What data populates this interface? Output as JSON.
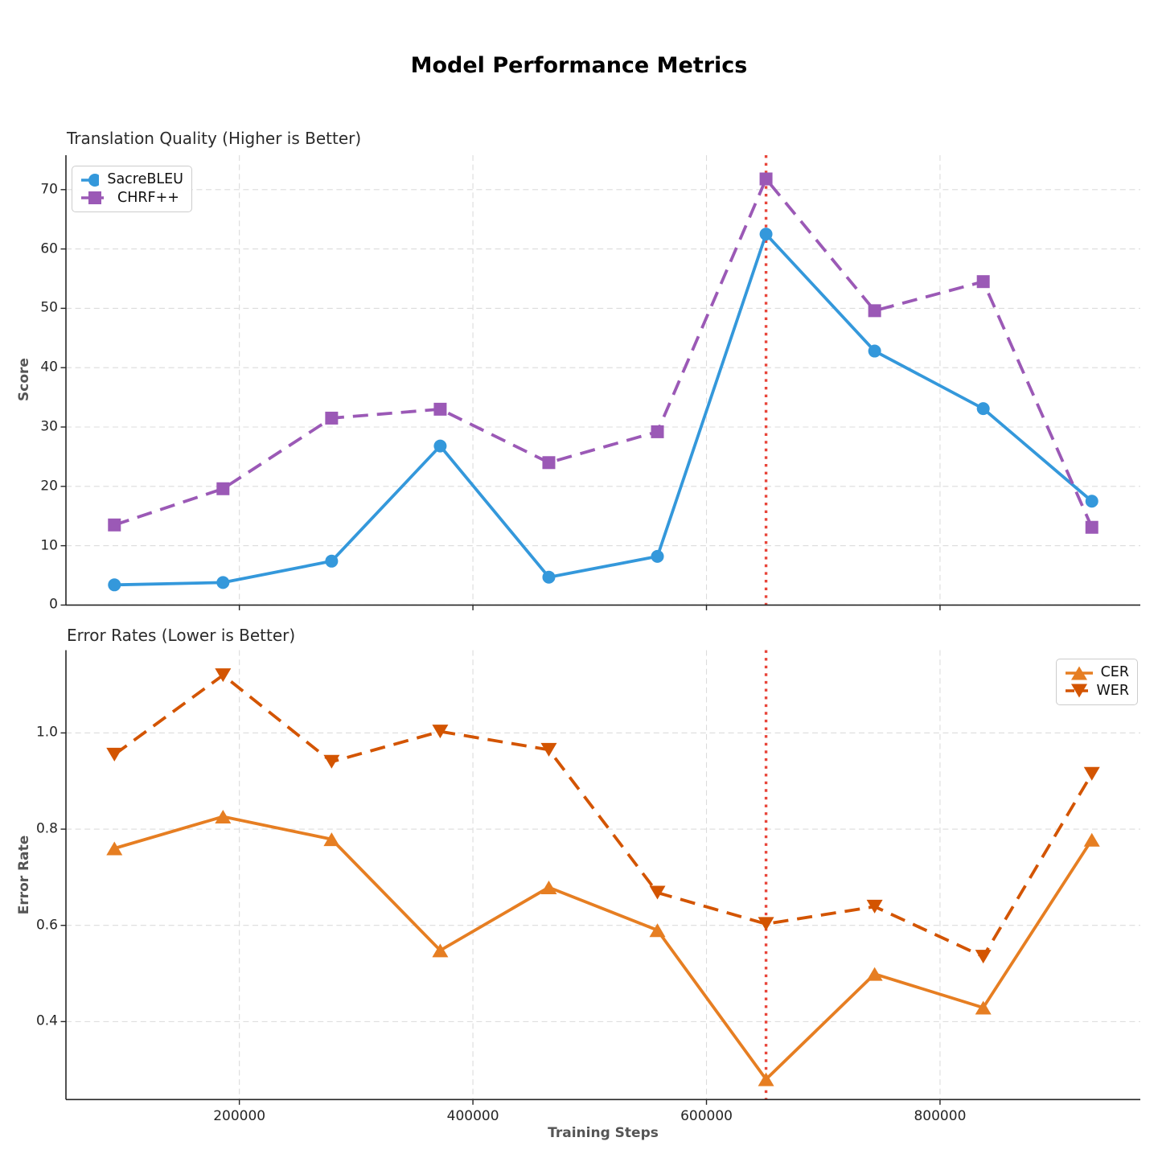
{
  "page_title": "Model Performance Metrics",
  "x_axis": {
    "label": "Training Steps",
    "tick_values": [
      200000,
      400000,
      600000,
      800000
    ],
    "tick_labels": [
      "200000",
      "400000",
      "600000",
      "800000"
    ],
    "xlim": [
      51500,
      971500
    ]
  },
  "vline": {
    "x": 651000,
    "color": "#e8453a",
    "style": "dotted"
  },
  "colors": {
    "sacrebleu": "#3498db",
    "chrf": "#9b59b6",
    "cer": "#e67e22",
    "wer": "#d35400",
    "grid": "#dcdcdc",
    "spine": "#262626"
  },
  "chart_data": [
    {
      "type": "line",
      "title": "Translation Quality (Higher is Better)",
      "ylabel": "Score",
      "ylim": [
        0,
        75.8
      ],
      "ytick_values": [
        0,
        10,
        20,
        30,
        40,
        50,
        60,
        70
      ],
      "ytick_labels": [
        "0",
        "10",
        "20",
        "30",
        "40",
        "50",
        "60",
        "70"
      ],
      "grid": true,
      "legend_position": "upper-left",
      "x": [
        93000,
        186000,
        279000,
        372000,
        465000,
        558000,
        651000,
        744000,
        837000,
        930000
      ],
      "series": [
        {
          "name": "SacreBLEU",
          "color": "#3498db",
          "linestyle": "solid",
          "marker": "circle",
          "values": [
            3.4,
            3.8,
            7.4,
            26.8,
            4.7,
            8.2,
            62.5,
            42.8,
            33.1,
            17.5
          ]
        },
        {
          "name": "CHRF++",
          "color": "#9b59b6",
          "linestyle": "dashed",
          "marker": "square",
          "values": [
            13.5,
            19.6,
            31.5,
            33.0,
            24.0,
            29.2,
            71.8,
            49.6,
            54.5,
            13.1
          ]
        }
      ]
    },
    {
      "type": "line",
      "title": "Error Rates (Lower is Better)",
      "ylabel": "Error Rate",
      "ylim": [
        0.238,
        1.172
      ],
      "ytick_values": [
        0.4,
        0.6,
        0.8,
        1.0
      ],
      "ytick_labels": [
        "0.4",
        "0.6",
        "0.8",
        "1.0"
      ],
      "grid": true,
      "legend_position": "upper-right",
      "x": [
        93000,
        186000,
        279000,
        372000,
        465000,
        558000,
        651000,
        744000,
        837000,
        930000
      ],
      "series": [
        {
          "name": "CER",
          "color": "#e67e22",
          "linestyle": "solid",
          "marker": "triangle-up",
          "values": [
            0.76,
            0.826,
            0.779,
            0.548,
            0.679,
            0.59,
            0.28,
            0.499,
            0.429,
            0.778
          ]
        },
        {
          "name": "WER",
          "color": "#d35400",
          "linestyle": "dashed",
          "marker": "triangle-down",
          "values": [
            0.955,
            1.12,
            0.94,
            1.003,
            0.965,
            0.668,
            0.603,
            0.639,
            0.535,
            0.915
          ]
        }
      ]
    }
  ]
}
